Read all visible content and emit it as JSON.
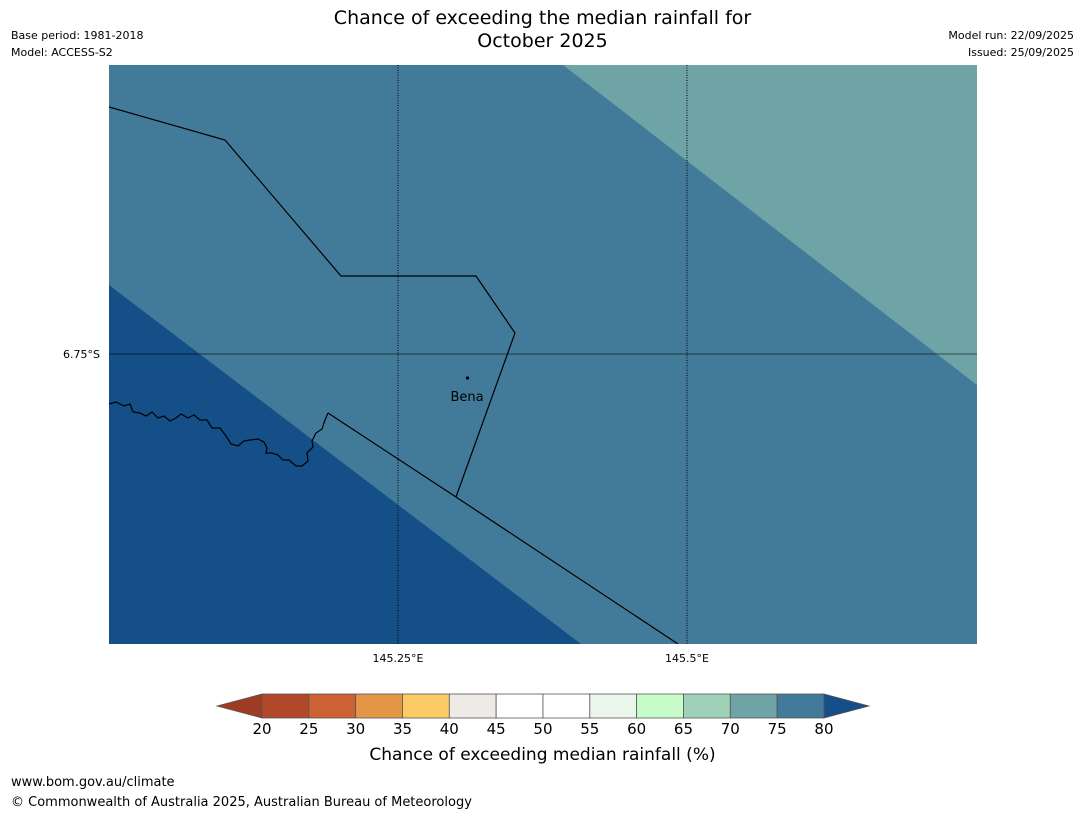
{
  "title_line1": "Chance of exceeding the median rainfall for",
  "title_line2": "October 2025",
  "meta": {
    "base_period": "Base period: 1981-2018",
    "model": "Model: ACCESS-S2",
    "model_run": "Model run: 22/09/2025",
    "issued": "Issued: 25/09/2025"
  },
  "map": {
    "lat_label": "6.75°S",
    "lon_labels": [
      "145.25°E",
      "145.5°E"
    ],
    "town": "Bena",
    "colors": {
      "band_70_75": "#6fa4a7",
      "band_75_80": "#427b99",
      "band_80_plus": "#144f87",
      "border": "#000000",
      "grid": "#000000"
    }
  },
  "colorbar": {
    "ticks": [
      "20",
      "25",
      "30",
      "35",
      "40",
      "45",
      "50",
      "55",
      "60",
      "65",
      "70",
      "75",
      "80"
    ],
    "colors": [
      "#9e3b22",
      "#b2482a",
      "#cc6233",
      "#e49545",
      "#fdcb66",
      "#eeeae5",
      "#ffffff",
      "#ffffff",
      "#eaf6ea",
      "#c8fcc8",
      "#9fd1b9",
      "#6fa4a7",
      "#427b99",
      "#144f87"
    ],
    "label": "Chance of exceeding median rainfall (%)"
  },
  "footer": {
    "url": "www.bom.gov.au/climate",
    "copyright": "© Commonwealth of Australia 2025, Australian Bureau of Meteorology"
  }
}
